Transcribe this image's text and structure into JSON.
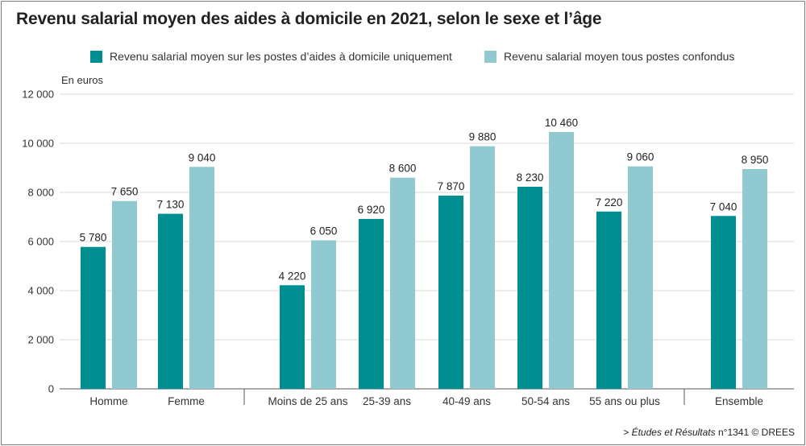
{
  "title": "Revenu salarial moyen des aides à domicile en 2021, selon le sexe et l’âge",
  "unit_label": "En euros",
  "source": {
    "prefix": "> ",
    "italic": "Études et Résultats",
    "rest": " n°1341 © DREES"
  },
  "colors": {
    "dark": "#008F91",
    "light": "#90C9D0",
    "axis": "#555555",
    "grid": "#DADADA"
  },
  "chart_data": {
    "type": "bar",
    "title": "Revenu salarial moyen des aides à domicile en 2021, selon le sexe et l’âge",
    "ylabel": "En euros",
    "xlabel": "",
    "ylim": [
      0,
      12000
    ],
    "yticks": [
      0,
      2000,
      4000,
      6000,
      8000,
      10000,
      12000
    ],
    "ytick_labels": [
      "0",
      "2 000",
      "4 000",
      "6 000",
      "8 000",
      "10 000",
      "12 000"
    ],
    "grid": true,
    "legend_position": "top",
    "categories": [
      "Homme",
      "Femme",
      "Moins de 25 ans",
      "25-39 ans",
      "40-49 ans",
      "50-54 ans",
      "55 ans ou plus",
      "Ensemble"
    ],
    "groups": [
      [
        "Homme",
        "Femme"
      ],
      [
        "Moins de 25 ans",
        "25-39 ans",
        "40-49 ans",
        "50-54 ans",
        "55 ans ou plus"
      ],
      [
        "Ensemble"
      ]
    ],
    "series": [
      {
        "name": "Revenu salarial moyen sur les postes d’aides à domicile uniquement",
        "color": "#008F91",
        "values": [
          5780,
          7130,
          4220,
          6920,
          7870,
          8230,
          7220,
          7040
        ],
        "labels": [
          "5 780",
          "7 130",
          "4 220",
          "6 920",
          "7 870",
          "8 230",
          "7 220",
          "7 040"
        ]
      },
      {
        "name": "Revenu salarial moyen tous postes confondus",
        "color": "#90C9D0",
        "values": [
          7650,
          9040,
          6050,
          8600,
          9880,
          10460,
          9060,
          8950
        ],
        "labels": [
          "7 650",
          "9 040",
          "6 050",
          "8 600",
          "9 880",
          "10 460",
          "9 060",
          "8 950"
        ]
      }
    ]
  }
}
